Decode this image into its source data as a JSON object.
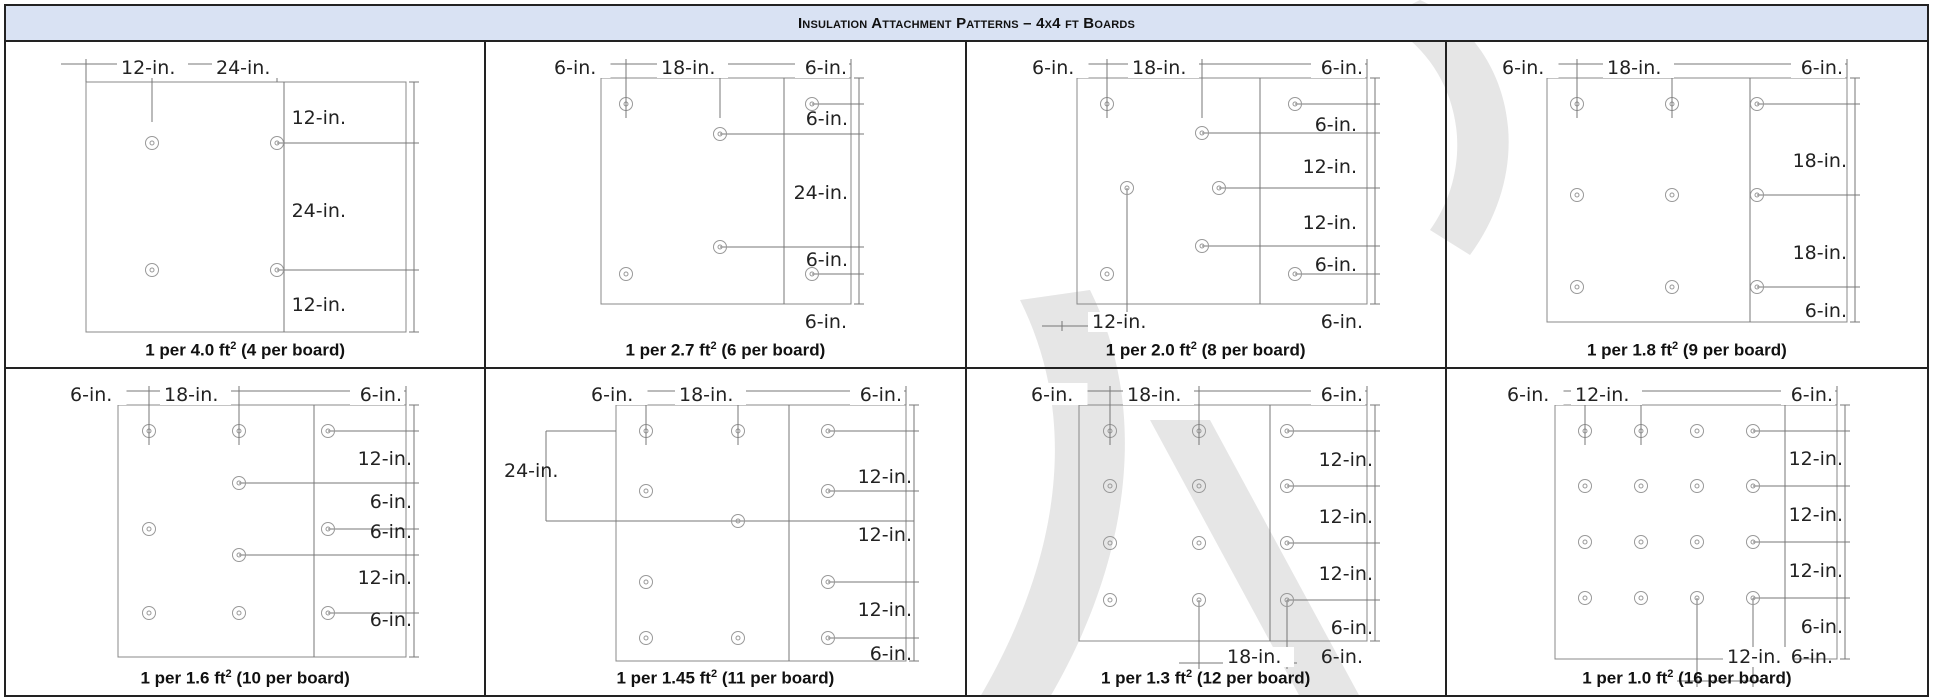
{
  "title": "Insulation Attachment Patterns – 4x4 ft Boards",
  "panels": [
    {
      "caption": "1 per 4.0 ft² (4 per board)",
      "top_dims": [
        "12-in.",
        "24-in."
      ],
      "top_right_dim": "",
      "right_dims": [
        "12-in.",
        "24-in.",
        "12-in."
      ],
      "left_dim": "",
      "bottom_dims": [],
      "bottom_right_dim": ""
    },
    {
      "caption": "1 per 2.7 ft² (6 per board)",
      "top_dims": [
        "6-in.",
        "18-in."
      ],
      "top_right_dim": "6-in.",
      "right_dims": [
        "6-in.",
        "24-in.",
        "6-in."
      ],
      "left_dim": "",
      "bottom_dims": [],
      "bottom_right_dim": "6-in."
    },
    {
      "caption": "1 per 2.0 ft² (8 per board)",
      "top_dims": [
        "6-in.",
        "18-in."
      ],
      "top_right_dim": "6-in.",
      "right_dims": [
        "6-in.",
        "12-in.",
        "12-in.",
        "6-in."
      ],
      "left_dim": "",
      "bottom_dims": [
        "12-in."
      ],
      "bottom_right_dim": "6-in."
    },
    {
      "caption": "1 per 1.8 ft² (9 per board)",
      "top_dims": [
        "6-in.",
        "18-in."
      ],
      "top_right_dim": "6-in.",
      "right_dims": [
        "18-in.",
        "18-in.",
        "6-in."
      ],
      "left_dim": "",
      "bottom_dims": [],
      "bottom_right_dim": ""
    },
    {
      "caption": "1 per 1.6 ft² (10 per board)",
      "top_dims": [
        "6-in.",
        "18-in."
      ],
      "top_right_dim": "6-in.",
      "right_dims": [
        "12-in.",
        "6-in.",
        "6-in.",
        "12-in.",
        "6-in."
      ],
      "left_dim": "",
      "bottom_dims": [],
      "bottom_right_dim": ""
    },
    {
      "caption": "1 per 1.45 ft² (11 per board)",
      "top_dims": [
        "6-in.",
        "18-in."
      ],
      "top_right_dim": "6-in.",
      "right_dims": [
        "12-in.",
        "12-in.",
        "12-in.",
        "6-in."
      ],
      "left_dim": "24-in.",
      "bottom_dims": [],
      "bottom_right_dim": ""
    },
    {
      "caption": "1 per 1.3 ft² (12 per board)",
      "top_dims": [
        "6-in.",
        "18-in."
      ],
      "top_right_dim": "6-in.",
      "right_dims": [
        "12-in.",
        "12-in.",
        "12-in.",
        "6-in."
      ],
      "left_dim": "",
      "bottom_dims": [
        "18-in."
      ],
      "bottom_right_dim": "6-in."
    },
    {
      "caption": "1 per 1.0 ft² (16 per board)",
      "top_dims": [
        "6-in.",
        "12-in."
      ],
      "top_right_dim": "6-in.",
      "right_dims": [
        "12-in.",
        "12-in.",
        "12-in.",
        "6-in."
      ],
      "left_dim": "",
      "bottom_dims": [
        "12-in."
      ],
      "bottom_right_dim": "6-in."
    }
  ]
}
